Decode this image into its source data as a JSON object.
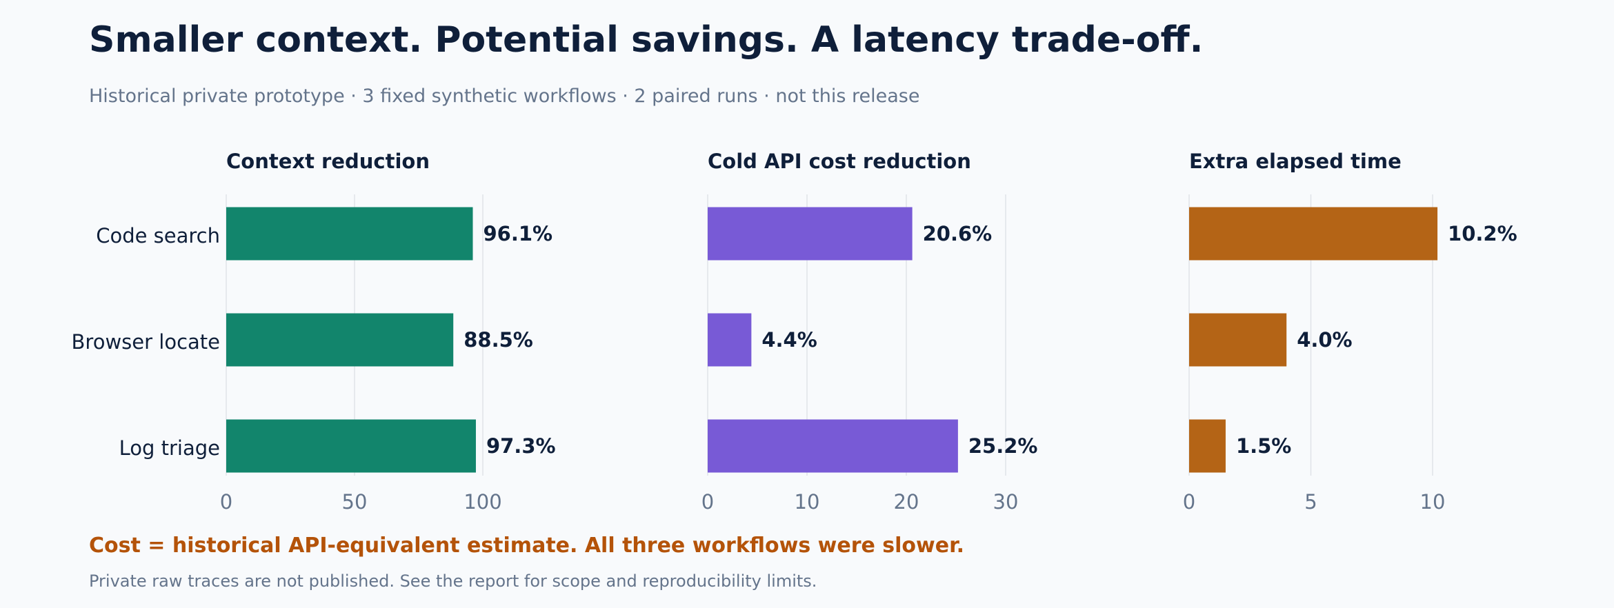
{
  "header": {
    "title": "Smaller context. Potential savings. A latency trade-off.",
    "subtitle": "Historical private prototype · 3 fixed synthetic workflows · 2 paired runs · not this release"
  },
  "footer": {
    "note": "Cost = historical API-equivalent estimate. All three workflows were slower.",
    "footnote": "Private raw traces are not published. See the report for scope and reproducibility limits."
  },
  "chart_data": [
    {
      "type": "bar",
      "orientation": "horizontal",
      "title": "Context reduction",
      "categories": [
        "Code search",
        "Browser locate",
        "Log triage"
      ],
      "values": [
        96.1,
        88.5,
        97.3
      ],
      "value_labels": [
        "96.1%",
        "88.5%",
        "97.3%"
      ],
      "xlim": [
        0,
        100
      ],
      "ticks": [
        0,
        50,
        100
      ],
      "color": "#12856c",
      "grid": true
    },
    {
      "type": "bar",
      "orientation": "horizontal",
      "title": "Cold API cost reduction",
      "categories": [
        "Code search",
        "Browser locate",
        "Log triage"
      ],
      "values": [
        20.6,
        4.4,
        25.2
      ],
      "value_labels": [
        "20.6%",
        "4.4%",
        "25.2%"
      ],
      "xlim": [
        0,
        30
      ],
      "ticks": [
        0,
        10,
        20,
        30
      ],
      "color": "#785ad6",
      "grid": true
    },
    {
      "type": "bar",
      "orientation": "horizontal",
      "title": "Extra elapsed time",
      "categories": [
        "Code search",
        "Browser locate",
        "Log triage"
      ],
      "values": [
        10.2,
        4.0,
        1.5
      ],
      "value_labels": [
        "10.2%",
        "4.0%",
        "1.5%"
      ],
      "xlim": [
        0,
        10
      ],
      "ticks": [
        0,
        5,
        10
      ],
      "color": "#b46416",
      "grid": true
    }
  ]
}
